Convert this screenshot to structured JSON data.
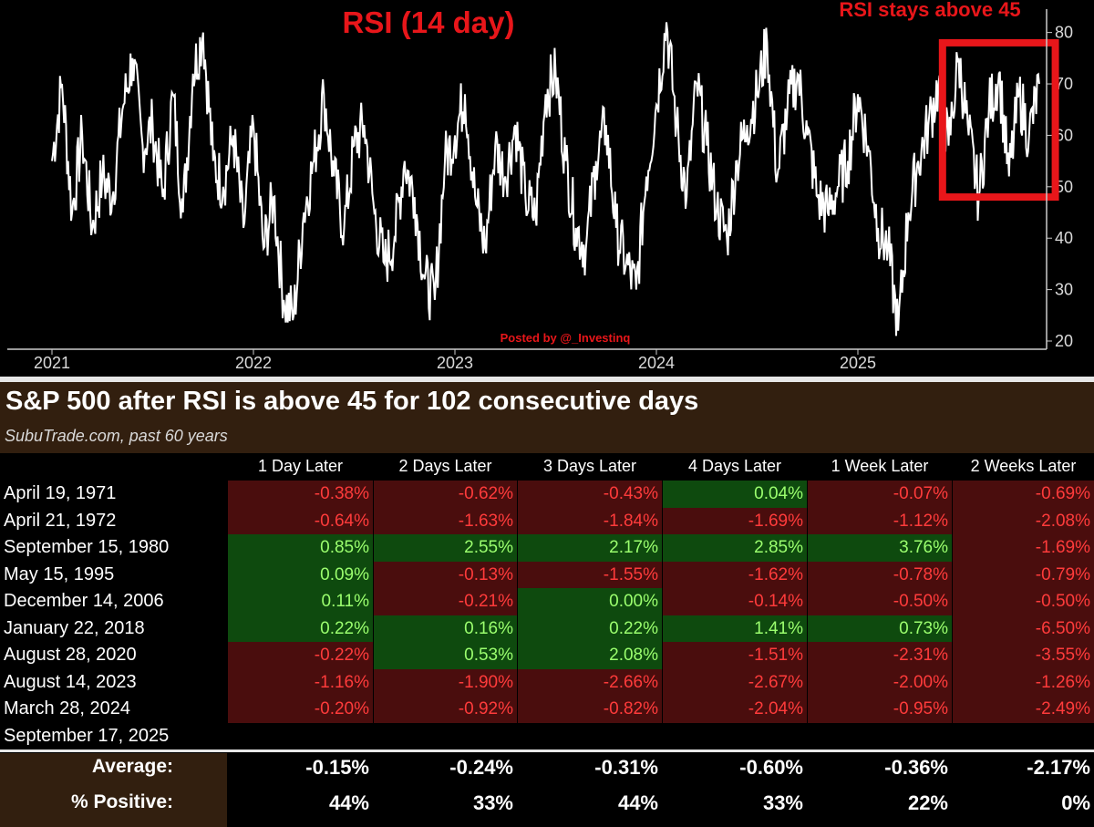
{
  "chart_data": {
    "type": "line",
    "title": "RSI (14 day)",
    "annotation": "RSI stays above 45",
    "credit": "Posted by @_Investinq",
    "x_ticks": [
      "2021",
      "2022",
      "2023",
      "2024",
      "2025"
    ],
    "y_ticks": [
      "80",
      "70",
      "60",
      "50",
      "40",
      "30",
      "20"
    ],
    "ylim": [
      20,
      81
    ],
    "xlim": [
      2021.0,
      2025.9
    ],
    "highlight_box": {
      "x_range": [
        2025.42,
        2025.98
      ],
      "y_range": [
        48,
        78
      ]
    },
    "series": [
      {
        "name": "RSI",
        "x": [
          2021.0,
          2021.05,
          2021.1,
          2021.15,
          2021.2,
          2021.25,
          2021.3,
          2021.35,
          2021.4,
          2021.45,
          2021.5,
          2021.55,
          2021.6,
          2021.65,
          2021.7,
          2021.75,
          2021.8,
          2021.85,
          2021.9,
          2021.95,
          2022.0,
          2022.05,
          2022.1,
          2022.15,
          2022.2,
          2022.25,
          2022.3,
          2022.35,
          2022.4,
          2022.45,
          2022.5,
          2022.55,
          2022.6,
          2022.65,
          2022.7,
          2022.75,
          2022.8,
          2022.85,
          2022.9,
          2022.95,
          2023.0,
          2023.05,
          2023.1,
          2023.15,
          2023.2,
          2023.25,
          2023.3,
          2023.35,
          2023.4,
          2023.45,
          2023.5,
          2023.55,
          2023.6,
          2023.65,
          2023.7,
          2023.75,
          2023.8,
          2023.85,
          2023.9,
          2023.95,
          2024.0,
          2024.05,
          2024.1,
          2024.15,
          2024.2,
          2024.25,
          2024.3,
          2024.35,
          2024.4,
          2024.45,
          2024.5,
          2024.55,
          2024.6,
          2024.65,
          2024.7,
          2024.75,
          2024.8,
          2024.85,
          2024.9,
          2024.95,
          2025.0,
          2025.05,
          2025.1,
          2025.15,
          2025.2,
          2025.25,
          2025.3,
          2025.35,
          2025.4,
          2025.45,
          2025.5,
          2025.55,
          2025.6,
          2025.65,
          2025.7,
          2025.75,
          2025.8,
          2025.85,
          2025.9
        ],
        "values": [
          55,
          70,
          45,
          60,
          42,
          52,
          48,
          65,
          75,
          58,
          62,
          48,
          68,
          45,
          72,
          80,
          55,
          50,
          60,
          42,
          62,
          38,
          48,
          28,
          25,
          45,
          55,
          68,
          52,
          42,
          58,
          62,
          45,
          35,
          40,
          55,
          48,
          32,
          28,
          55,
          60,
          68,
          48,
          38,
          58,
          52,
          62,
          48,
          44,
          68,
          72,
          55,
          42,
          38,
          55,
          62,
          42,
          35,
          30,
          52,
          66,
          82,
          62,
          48,
          70,
          58,
          46,
          40,
          55,
          62,
          68,
          78,
          52,
          65,
          72,
          60,
          48,
          45,
          50,
          55,
          68,
          58,
          42,
          38,
          22,
          45,
          55,
          62,
          70,
          58,
          75,
          60,
          48,
          65,
          72,
          52,
          68,
          60,
          70
        ]
      }
    ]
  },
  "table": {
    "title": "S&P 500 after RSI is above 45 for 102 consecutive days",
    "subtitle": "SubuTrade.com, past 60 years",
    "columns": [
      "1 Day Later",
      "2 Days Later",
      "3 Days Later",
      "4 Days Later",
      "1 Week Later",
      "2 Weeks Later"
    ],
    "rows": [
      {
        "date": "April 19, 1971",
        "values": [
          "-0.38%",
          "-0.62%",
          "-0.43%",
          "0.04%",
          "-0.07%",
          "-0.69%"
        ]
      },
      {
        "date": "April 21, 1972",
        "values": [
          "-0.64%",
          "-1.63%",
          "-1.84%",
          "-1.69%",
          "-1.12%",
          "-2.08%"
        ]
      },
      {
        "date": "September 15, 1980",
        "values": [
          "0.85%",
          "2.55%",
          "2.17%",
          "2.85%",
          "3.76%",
          "-1.69%"
        ]
      },
      {
        "date": "May 15, 1995",
        "values": [
          "0.09%",
          "-0.13%",
          "-1.55%",
          "-1.62%",
          "-0.78%",
          "-0.79%"
        ]
      },
      {
        "date": "December 14, 2006",
        "values": [
          "0.11%",
          "-0.21%",
          "0.00%",
          "-0.14%",
          "-0.50%",
          "-0.50%"
        ]
      },
      {
        "date": "January 22, 2018",
        "values": [
          "0.22%",
          "0.16%",
          "0.22%",
          "1.41%",
          "0.73%",
          "-6.50%"
        ]
      },
      {
        "date": "August 28, 2020",
        "values": [
          "-0.22%",
          "0.53%",
          "2.08%",
          "-1.51%",
          "-2.31%",
          "-3.55%"
        ]
      },
      {
        "date": "August 14, 2023",
        "values": [
          "-1.16%",
          "-1.90%",
          "-2.66%",
          "-2.67%",
          "-2.00%",
          "-1.26%"
        ]
      },
      {
        "date": "March 28, 2024",
        "values": [
          "-0.20%",
          "-0.92%",
          "-0.82%",
          "-2.04%",
          "-0.95%",
          "-2.49%"
        ]
      },
      {
        "date": "September 17, 2025",
        "values": []
      }
    ],
    "summary": {
      "average_label": "Average:",
      "average": [
        "-0.15%",
        "-0.24%",
        "-0.31%",
        "-0.60%",
        "-0.36%",
        "-2.17%"
      ],
      "positive_label": "% Positive:",
      "positive": [
        "44%",
        "33%",
        "44%",
        "33%",
        "22%",
        "0%"
      ]
    }
  },
  "colors": {
    "negative_bg": "#4a0d0d",
    "negative_text": "#ff3b3b",
    "positive_bg": "#0e4a0e",
    "positive_text": "#9bff6e",
    "accent_red": "#e8161a",
    "title_bar": "#321f0f"
  }
}
